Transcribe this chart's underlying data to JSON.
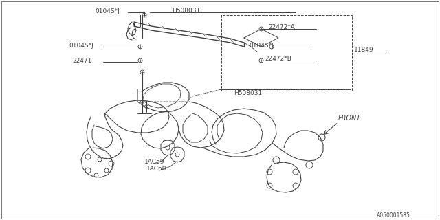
{
  "background_color": "#ffffff",
  "line_color": "#404040",
  "text_color": "#404040",
  "fig_width": 6.4,
  "fig_height": 3.2,
  "dpi": 100,
  "part_number": "A050001585",
  "labels": {
    "H508031_top": "H508031",
    "H508031_bot": "H508031",
    "22472A": "22472*A",
    "22472B": "22472*B",
    "0104SJ_1": "0104S*J",
    "0104SJ_2": "0104S*J",
    "0104SJ_3": "0104S*J",
    "11849": "11849",
    "22471": "22471",
    "1AC59": "1AC59",
    "1AC60": "1AC60",
    "FRONT": "FRONT"
  }
}
